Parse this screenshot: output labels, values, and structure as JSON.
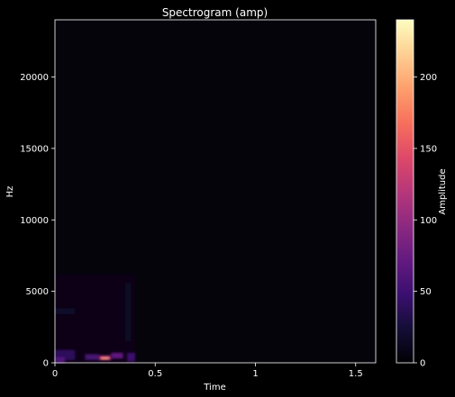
{
  "chart_data": {
    "type": "heatmap",
    "title": "Spectrogram (amp)",
    "xlabel": "Time",
    "ylabel": "Hz",
    "xlim": [
      0,
      1.6
    ],
    "ylim": [
      0,
      24000
    ],
    "x_ticks": [
      {
        "value": 0,
        "label": "0"
      },
      {
        "value": 0.5,
        "label": "0.5"
      },
      {
        "value": 1,
        "label": "1"
      },
      {
        "value": 1.5,
        "label": "1.5"
      }
    ],
    "y_ticks": [
      {
        "value": 0,
        "label": "0"
      },
      {
        "value": 5000,
        "label": "5000"
      },
      {
        "value": 10000,
        "label": "10000"
      },
      {
        "value": 15000,
        "label": "15000"
      },
      {
        "value": 20000,
        "label": "20000"
      }
    ],
    "grid": false,
    "colormap": "magma",
    "colorbar": {
      "label": "Amplitude",
      "range": [
        0,
        240
      ],
      "ticks": [
        {
          "value": 0,
          "label": "0"
        },
        {
          "value": 50,
          "label": "50"
        },
        {
          "value": 100,
          "label": "100"
        },
        {
          "value": 150,
          "label": "150"
        },
        {
          "value": 200,
          "label": "200"
        }
      ]
    },
    "background_level": 0,
    "energy_regions": [
      {
        "t0": 0.0,
        "t1": 0.4,
        "f0": 0,
        "f1": 6200,
        "amplitude": 8
      },
      {
        "t0": 0.0,
        "t1": 0.1,
        "f0": 3400,
        "f1": 3800,
        "amplitude": 18
      },
      {
        "t0": 0.0,
        "t1": 0.1,
        "f0": 200,
        "f1": 900,
        "amplitude": 40
      },
      {
        "t0": 0.0,
        "t1": 0.05,
        "f0": 0,
        "f1": 400,
        "amplitude": 60
      },
      {
        "t0": 0.15,
        "t1": 0.22,
        "f0": 200,
        "f1": 600,
        "amplitude": 55
      },
      {
        "t0": 0.22,
        "t1": 0.28,
        "f0": 200,
        "f1": 500,
        "amplitude": 120
      },
      {
        "t0": 0.23,
        "t1": 0.27,
        "f0": 250,
        "f1": 380,
        "amplitude": 200
      },
      {
        "t0": 0.28,
        "t1": 0.34,
        "f0": 300,
        "f1": 700,
        "amplitude": 70
      },
      {
        "t0": 0.35,
        "t1": 0.38,
        "f0": 1500,
        "f1": 5600,
        "amplitude": 14
      },
      {
        "t0": 0.36,
        "t1": 0.4,
        "f0": 100,
        "f1": 700,
        "amplitude": 50
      }
    ]
  }
}
